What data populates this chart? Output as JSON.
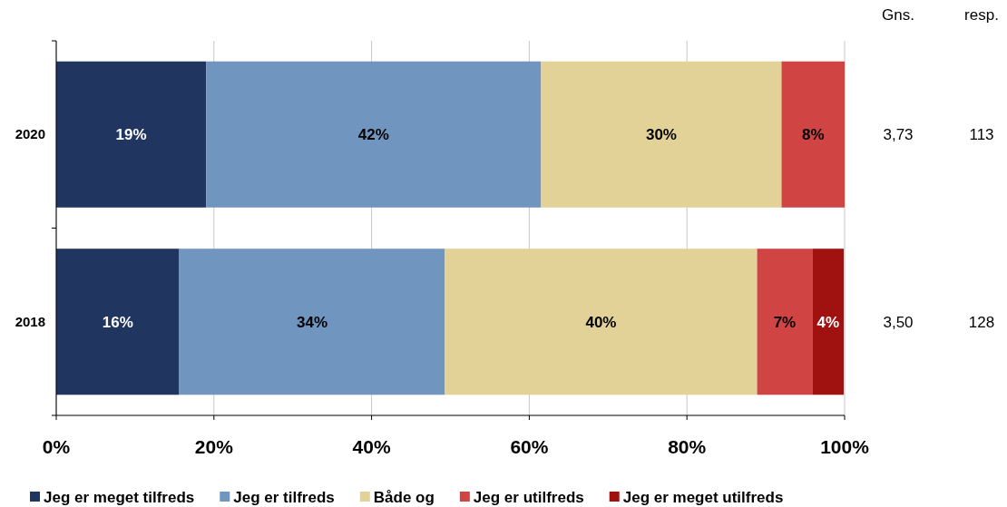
{
  "chart_data": {
    "type": "bar",
    "orientation": "horizontal",
    "stacked": true,
    "categories": [
      "2020",
      "2018"
    ],
    "series": [
      {
        "name": "Jeg er meget tilfreds",
        "color": "#203560",
        "values": [
          19.0,
          15.6
        ],
        "value_labels": [
          "19%",
          "16%"
        ]
      },
      {
        "name": "Jeg er tilfreds",
        "color": "#7096c0",
        "values": [
          42.5,
          33.7
        ],
        "value_labels": [
          "42%",
          "34%"
        ]
      },
      {
        "name": "Både og",
        "color": "#e3d298",
        "values": [
          30.5,
          39.6
        ],
        "value_labels": [
          "30%",
          "40%"
        ]
      },
      {
        "name": "Jeg er utilfreds",
        "color": "#d04443",
        "values": [
          8.0,
          7.0
        ],
        "value_labels": [
          "8%",
          "7%"
        ]
      },
      {
        "name": "Jeg er meget utilfreds",
        "color": "#a0120f",
        "values": [
          null,
          4.0
        ],
        "value_labels": [
          null,
          "4%"
        ]
      }
    ],
    "xlim": [
      0,
      100
    ],
    "xticks": [
      {
        "value": 0,
        "label": "0%"
      },
      {
        "value": 20,
        "label": "20%"
      },
      {
        "value": 40,
        "label": "40%"
      },
      {
        "value": 60,
        "label": "60%"
      },
      {
        "value": 80,
        "label": "80%"
      },
      {
        "value": 100,
        "label": "100%"
      }
    ],
    "grid": "x",
    "legend": "bottom",
    "annotations": [
      "Gns.",
      "resp.",
      "3,73",
      "113",
      "3,50",
      "128"
    ]
  }
}
